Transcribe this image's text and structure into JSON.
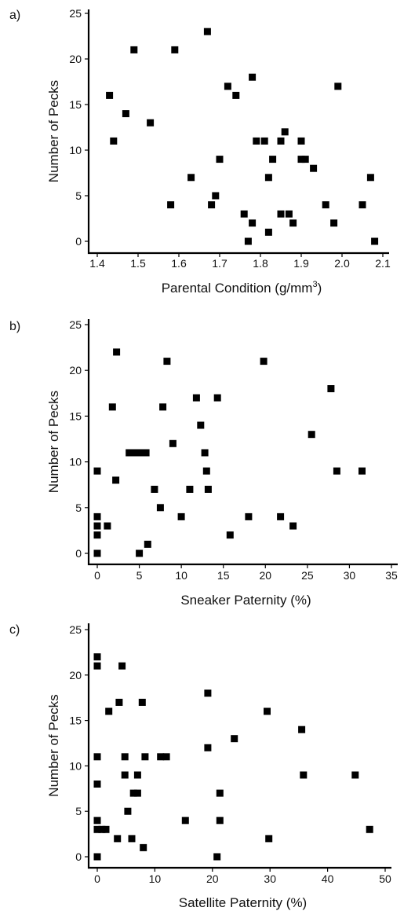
{
  "chart_data": [
    {
      "type": "scatter",
      "panel_label": "a)",
      "xlabel": "Parental Condition (g/mm",
      "xlabel_superscript": "3",
      "xlabel_suffix": ")",
      "ylabel": "Number of Pecks",
      "xlim": [
        1.4,
        2.1
      ],
      "ylim": [
        0,
        25
      ],
      "xticks": [
        "1.4",
        "1.5",
        "1.6",
        "1.7",
        "1.8",
        "1.9",
        "2.0",
        "2.1"
      ],
      "yticks": [
        "0",
        "5",
        "10",
        "15",
        "20",
        "25"
      ],
      "grid": false,
      "marker_color": "#000000",
      "points": [
        {
          "x": 1.43,
          "y": 16
        },
        {
          "x": 1.44,
          "y": 11
        },
        {
          "x": 1.47,
          "y": 14
        },
        {
          "x": 1.49,
          "y": 21
        },
        {
          "x": 1.53,
          "y": 13
        },
        {
          "x": 1.58,
          "y": 4
        },
        {
          "x": 1.59,
          "y": 21
        },
        {
          "x": 1.63,
          "y": 7
        },
        {
          "x": 1.67,
          "y": 23
        },
        {
          "x": 1.68,
          "y": 4
        },
        {
          "x": 1.69,
          "y": 5
        },
        {
          "x": 1.7,
          "y": 9
        },
        {
          "x": 1.72,
          "y": 17
        },
        {
          "x": 1.74,
          "y": 16
        },
        {
          "x": 1.76,
          "y": 3
        },
        {
          "x": 1.77,
          "y": 0
        },
        {
          "x": 1.78,
          "y": 2
        },
        {
          "x": 1.78,
          "y": 18
        },
        {
          "x": 1.79,
          "y": 11
        },
        {
          "x": 1.81,
          "y": 11
        },
        {
          "x": 1.82,
          "y": 1
        },
        {
          "x": 1.82,
          "y": 7
        },
        {
          "x": 1.83,
          "y": 9
        },
        {
          "x": 1.85,
          "y": 3
        },
        {
          "x": 1.85,
          "y": 11
        },
        {
          "x": 1.86,
          "y": 12
        },
        {
          "x": 1.87,
          "y": 3
        },
        {
          "x": 1.88,
          "y": 2
        },
        {
          "x": 1.9,
          "y": 9
        },
        {
          "x": 1.9,
          "y": 11
        },
        {
          "x": 1.91,
          "y": 9
        },
        {
          "x": 1.93,
          "y": 8
        },
        {
          "x": 1.96,
          "y": 4
        },
        {
          "x": 1.98,
          "y": 2
        },
        {
          "x": 1.99,
          "y": 17
        },
        {
          "x": 2.05,
          "y": 4
        },
        {
          "x": 2.07,
          "y": 7
        },
        {
          "x": 2.08,
          "y": 0
        }
      ]
    },
    {
      "type": "scatter",
      "panel_label": "b)",
      "xlabel": "Sneaker Paternity (%)",
      "ylabel": "Number of Pecks",
      "xlim": [
        0,
        35
      ],
      "ylim": [
        0,
        25
      ],
      "xticks": [
        "0",
        "5",
        "10",
        "15",
        "20",
        "25",
        "30",
        "35"
      ],
      "yticks": [
        "0",
        "5",
        "10",
        "15",
        "20",
        "25"
      ],
      "grid": false,
      "marker_color": "#000000",
      "points": [
        {
          "x": 0,
          "y": 0
        },
        {
          "x": 0,
          "y": 2
        },
        {
          "x": 0,
          "y": 3
        },
        {
          "x": 0,
          "y": 4
        },
        {
          "x": 0,
          "y": 9
        },
        {
          "x": 1.2,
          "y": 3
        },
        {
          "x": 1.8,
          "y": 16
        },
        {
          "x": 2.2,
          "y": 8
        },
        {
          "x": 2.3,
          "y": 22
        },
        {
          "x": 3.8,
          "y": 11
        },
        {
          "x": 4.3,
          "y": 11
        },
        {
          "x": 4.8,
          "y": 11
        },
        {
          "x": 5.0,
          "y": 0
        },
        {
          "x": 5.3,
          "y": 11
        },
        {
          "x": 5.8,
          "y": 11
        },
        {
          "x": 6.0,
          "y": 1
        },
        {
          "x": 6.8,
          "y": 7
        },
        {
          "x": 7.5,
          "y": 5
        },
        {
          "x": 7.8,
          "y": 16
        },
        {
          "x": 8.3,
          "y": 21
        },
        {
          "x": 9.0,
          "y": 12
        },
        {
          "x": 10.0,
          "y": 4
        },
        {
          "x": 11.0,
          "y": 7
        },
        {
          "x": 11.8,
          "y": 17
        },
        {
          "x": 12.3,
          "y": 14
        },
        {
          "x": 12.8,
          "y": 11
        },
        {
          "x": 13.0,
          "y": 9
        },
        {
          "x": 13.2,
          "y": 7
        },
        {
          "x": 14.3,
          "y": 17
        },
        {
          "x": 15.8,
          "y": 2
        },
        {
          "x": 18.0,
          "y": 4
        },
        {
          "x": 19.8,
          "y": 21
        },
        {
          "x": 21.8,
          "y": 4
        },
        {
          "x": 23.3,
          "y": 3
        },
        {
          "x": 25.5,
          "y": 13
        },
        {
          "x": 27.8,
          "y": 18
        },
        {
          "x": 28.5,
          "y": 9
        },
        {
          "x": 31.5,
          "y": 9
        }
      ]
    },
    {
      "type": "scatter",
      "panel_label": "c)",
      "xlabel": "Satellite Paternity (%)",
      "ylabel": "Number of Pecks",
      "xlim": [
        0,
        50
      ],
      "ylim": [
        0,
        25
      ],
      "xticks": [
        "0",
        "10",
        "20",
        "30",
        "40",
        "50"
      ],
      "yticks": [
        "0",
        "5",
        "10",
        "15",
        "20",
        "25"
      ],
      "grid": false,
      "marker_color": "#000000",
      "points": [
        {
          "x": 0,
          "y": 0
        },
        {
          "x": 0,
          "y": 3
        },
        {
          "x": 0,
          "y": 4
        },
        {
          "x": 0,
          "y": 8
        },
        {
          "x": 0,
          "y": 11
        },
        {
          "x": 0,
          "y": 21
        },
        {
          "x": 0,
          "y": 22
        },
        {
          "x": 0.8,
          "y": 3
        },
        {
          "x": 1.5,
          "y": 3
        },
        {
          "x": 2.0,
          "y": 16
        },
        {
          "x": 3.5,
          "y": 2
        },
        {
          "x": 3.8,
          "y": 17
        },
        {
          "x": 4.3,
          "y": 21
        },
        {
          "x": 4.8,
          "y": 9
        },
        {
          "x": 4.8,
          "y": 11
        },
        {
          "x": 5.3,
          "y": 5
        },
        {
          "x": 6.0,
          "y": 2
        },
        {
          "x": 6.3,
          "y": 7
        },
        {
          "x": 7.0,
          "y": 7
        },
        {
          "x": 7.0,
          "y": 9
        },
        {
          "x": 7.8,
          "y": 17
        },
        {
          "x": 8.0,
          "y": 1
        },
        {
          "x": 8.3,
          "y": 11
        },
        {
          "x": 11.0,
          "y": 11
        },
        {
          "x": 12.0,
          "y": 11
        },
        {
          "x": 15.3,
          "y": 4
        },
        {
          "x": 19.2,
          "y": 18
        },
        {
          "x": 19.2,
          "y": 12
        },
        {
          "x": 20.8,
          "y": 0
        },
        {
          "x": 21.3,
          "y": 4
        },
        {
          "x": 21.3,
          "y": 7
        },
        {
          "x": 23.8,
          "y": 13
        },
        {
          "x": 29.5,
          "y": 16
        },
        {
          "x": 29.8,
          "y": 2
        },
        {
          "x": 35.5,
          "y": 14
        },
        {
          "x": 35.8,
          "y": 9
        },
        {
          "x": 44.8,
          "y": 9
        },
        {
          "x": 47.3,
          "y": 3
        }
      ]
    }
  ]
}
